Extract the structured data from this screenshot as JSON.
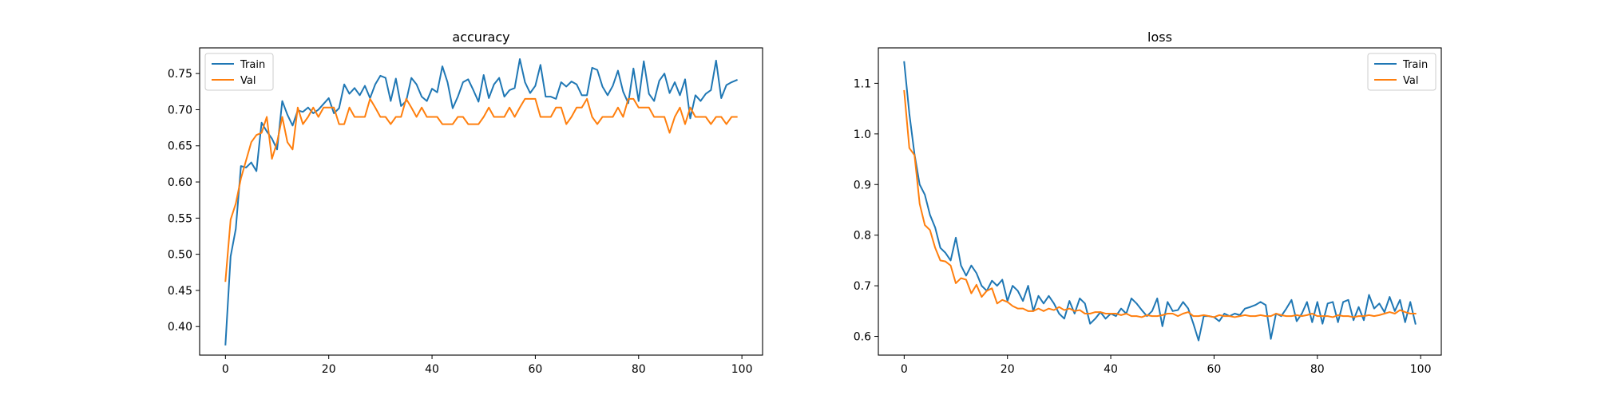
{
  "chart_data": [
    {
      "type": "line",
      "title": "accuracy",
      "xlabel": "",
      "ylabel": "",
      "xlim": [
        -5,
        104
      ],
      "ylim": [
        0.3605,
        0.7855
      ],
      "xticks": [
        0,
        20,
        40,
        60,
        80,
        100
      ],
      "xtick_labels": [
        "0",
        "20",
        "40",
        "60",
        "80",
        "100"
      ],
      "yticks": [
        0.4,
        0.45,
        0.5,
        0.55,
        0.6,
        0.65,
        0.7,
        0.75
      ],
      "ytick_labels": [
        "0.40",
        "0.45",
        "0.50",
        "0.55",
        "0.60",
        "0.65",
        "0.70",
        "0.75"
      ],
      "grid": false,
      "legend_position": "upper-left",
      "series": [
        {
          "name": "Train",
          "color": "#1f77b4",
          "x": [
            0,
            1,
            2,
            3,
            4,
            5,
            6,
            7,
            8,
            9,
            10,
            11,
            12,
            13,
            14,
            15,
            16,
            17,
            18,
            19,
            20,
            21,
            22,
            23,
            24,
            25,
            26,
            27,
            28,
            29,
            30,
            31,
            32,
            33,
            34,
            35,
            36,
            37,
            38,
            39,
            40,
            41,
            42,
            43,
            44,
            45,
            46,
            47,
            48,
            49,
            50,
            51,
            52,
            53,
            54,
            55,
            56,
            57,
            58,
            59,
            60,
            61,
            62,
            63,
            64,
            65,
            66,
            67,
            68,
            69,
            70,
            71,
            72,
            73,
            74,
            75,
            76,
            77,
            78,
            79,
            80,
            81,
            82,
            83,
            84,
            85,
            86,
            87,
            88,
            89,
            90,
            91,
            92,
            93,
            94,
            95,
            96,
            97,
            98,
            99
          ],
          "values": [
            0.375,
            0.497,
            0.535,
            0.622,
            0.62,
            0.627,
            0.615,
            0.682,
            0.67,
            0.66,
            0.645,
            0.712,
            0.693,
            0.678,
            0.699,
            0.697,
            0.703,
            0.695,
            0.7,
            0.708,
            0.716,
            0.695,
            0.702,
            0.735,
            0.722,
            0.73,
            0.72,
            0.733,
            0.716,
            0.735,
            0.747,
            0.744,
            0.712,
            0.743,
            0.705,
            0.712,
            0.744,
            0.735,
            0.718,
            0.712,
            0.729,
            0.724,
            0.76,
            0.738,
            0.702,
            0.718,
            0.738,
            0.742,
            0.727,
            0.711,
            0.748,
            0.716,
            0.735,
            0.744,
            0.718,
            0.727,
            0.73,
            0.77,
            0.738,
            0.723,
            0.733,
            0.762,
            0.718,
            0.718,
            0.715,
            0.738,
            0.732,
            0.739,
            0.735,
            0.72,
            0.72,
            0.758,
            0.755,
            0.732,
            0.72,
            0.733,
            0.754,
            0.725,
            0.709,
            0.757,
            0.712,
            0.767,
            0.722,
            0.712,
            0.74,
            0.75,
            0.723,
            0.738,
            0.72,
            0.742,
            0.688,
            0.72,
            0.712,
            0.722,
            0.727,
            0.768,
            0.716,
            0.734,
            0.738,
            0.741
          ]
        },
        {
          "name": "Val",
          "color": "#ff7f0e",
          "x": [
            0,
            1,
            2,
            3,
            4,
            5,
            6,
            7,
            8,
            9,
            10,
            11,
            12,
            13,
            14,
            15,
            16,
            17,
            18,
            19,
            20,
            21,
            22,
            23,
            24,
            25,
            26,
            27,
            28,
            29,
            30,
            31,
            32,
            33,
            34,
            35,
            36,
            37,
            38,
            39,
            40,
            41,
            42,
            43,
            44,
            45,
            46,
            47,
            48,
            49,
            50,
            51,
            52,
            53,
            54,
            55,
            56,
            57,
            58,
            59,
            60,
            61,
            62,
            63,
            64,
            65,
            66,
            67,
            68,
            69,
            70,
            71,
            72,
            73,
            74,
            75,
            76,
            77,
            78,
            79,
            80,
            81,
            82,
            83,
            84,
            85,
            86,
            87,
            88,
            89,
            90,
            91,
            92,
            93,
            94,
            95,
            96,
            97,
            98,
            99
          ],
          "values": [
            0.463,
            0.548,
            0.57,
            0.605,
            0.63,
            0.655,
            0.665,
            0.668,
            0.69,
            0.632,
            0.655,
            0.69,
            0.655,
            0.645,
            0.703,
            0.68,
            0.69,
            0.703,
            0.69,
            0.703,
            0.703,
            0.703,
            0.68,
            0.68,
            0.703,
            0.69,
            0.69,
            0.69,
            0.715,
            0.703,
            0.69,
            0.69,
            0.68,
            0.69,
            0.69,
            0.715,
            0.703,
            0.69,
            0.703,
            0.69,
            0.69,
            0.69,
            0.68,
            0.68,
            0.68,
            0.69,
            0.69,
            0.68,
            0.68,
            0.68,
            0.69,
            0.703,
            0.69,
            0.69,
            0.69,
            0.703,
            0.69,
            0.703,
            0.715,
            0.715,
            0.715,
            0.69,
            0.69,
            0.69,
            0.703,
            0.703,
            0.68,
            0.69,
            0.703,
            0.703,
            0.715,
            0.69,
            0.68,
            0.69,
            0.69,
            0.69,
            0.703,
            0.69,
            0.715,
            0.715,
            0.703,
            0.703,
            0.703,
            0.69,
            0.69,
            0.69,
            0.668,
            0.69,
            0.703,
            0.68,
            0.703,
            0.69,
            0.69,
            0.69,
            0.68,
            0.69,
            0.69,
            0.68,
            0.69,
            0.69
          ]
        }
      ]
    },
    {
      "type": "line",
      "title": "loss",
      "xlabel": "",
      "ylabel": "",
      "xlim": [
        -5,
        104
      ],
      "ylim": [
        0.563,
        1.17
      ],
      "xticks": [
        0,
        20,
        40,
        60,
        80,
        100
      ],
      "xtick_labels": [
        "0",
        "20",
        "40",
        "60",
        "80",
        "100"
      ],
      "yticks": [
        0.6,
        0.7,
        0.8,
        0.9,
        1.0,
        1.1
      ],
      "ytick_labels": [
        "0.6",
        "0.7",
        "0.8",
        "0.9",
        "1.0",
        "1.1"
      ],
      "grid": false,
      "legend_position": "upper-right",
      "series": [
        {
          "name": "Train",
          "color": "#1f77b4",
          "x": [
            0,
            1,
            2,
            3,
            4,
            5,
            6,
            7,
            8,
            9,
            10,
            11,
            12,
            13,
            14,
            15,
            16,
            17,
            18,
            19,
            20,
            21,
            22,
            23,
            24,
            25,
            26,
            27,
            28,
            29,
            30,
            31,
            32,
            33,
            34,
            35,
            36,
            37,
            38,
            39,
            40,
            41,
            42,
            43,
            44,
            45,
            46,
            47,
            48,
            49,
            50,
            51,
            52,
            53,
            54,
            55,
            56,
            57,
            58,
            59,
            60,
            61,
            62,
            63,
            64,
            65,
            66,
            67,
            68,
            69,
            70,
            71,
            72,
            73,
            74,
            75,
            76,
            77,
            78,
            79,
            80,
            81,
            82,
            83,
            84,
            85,
            86,
            87,
            88,
            89,
            90,
            91,
            92,
            93,
            94,
            95,
            96,
            97,
            98,
            99
          ],
          "values": [
            1.142,
            1.04,
            0.96,
            0.9,
            0.88,
            0.84,
            0.815,
            0.775,
            0.765,
            0.75,
            0.795,
            0.74,
            0.72,
            0.74,
            0.725,
            0.7,
            0.69,
            0.71,
            0.7,
            0.712,
            0.67,
            0.7,
            0.69,
            0.67,
            0.7,
            0.65,
            0.68,
            0.665,
            0.68,
            0.665,
            0.645,
            0.635,
            0.67,
            0.645,
            0.675,
            0.665,
            0.625,
            0.635,
            0.648,
            0.635,
            0.645,
            0.64,
            0.655,
            0.645,
            0.675,
            0.665,
            0.652,
            0.64,
            0.65,
            0.675,
            0.62,
            0.668,
            0.65,
            0.652,
            0.668,
            0.655,
            0.625,
            0.592,
            0.64,
            0.64,
            0.638,
            0.63,
            0.645,
            0.64,
            0.645,
            0.642,
            0.655,
            0.658,
            0.662,
            0.668,
            0.662,
            0.595,
            0.645,
            0.64,
            0.655,
            0.672,
            0.63,
            0.645,
            0.668,
            0.628,
            0.668,
            0.625,
            0.665,
            0.668,
            0.628,
            0.668,
            0.672,
            0.632,
            0.658,
            0.632,
            0.682,
            0.655,
            0.665,
            0.648,
            0.678,
            0.65,
            0.672,
            0.628,
            0.668,
            0.625
          ]
        },
        {
          "name": "Val",
          "color": "#ff7f0e",
          "x": [
            0,
            1,
            2,
            3,
            4,
            5,
            6,
            7,
            8,
            9,
            10,
            11,
            12,
            13,
            14,
            15,
            16,
            17,
            18,
            19,
            20,
            21,
            22,
            23,
            24,
            25,
            26,
            27,
            28,
            29,
            30,
            31,
            32,
            33,
            34,
            35,
            36,
            37,
            38,
            39,
            40,
            41,
            42,
            43,
            44,
            45,
            46,
            47,
            48,
            49,
            50,
            51,
            52,
            53,
            54,
            55,
            56,
            57,
            58,
            59,
            60,
            61,
            62,
            63,
            64,
            65,
            66,
            67,
            68,
            69,
            70,
            71,
            72,
            73,
            74,
            75,
            76,
            77,
            78,
            79,
            80,
            81,
            82,
            83,
            84,
            85,
            86,
            87,
            88,
            89,
            90,
            91,
            92,
            93,
            94,
            95,
            96,
            97,
            98,
            99
          ],
          "values": [
            1.085,
            0.972,
            0.958,
            0.862,
            0.82,
            0.81,
            0.775,
            0.75,
            0.748,
            0.74,
            0.705,
            0.715,
            0.712,
            0.685,
            0.702,
            0.678,
            0.69,
            0.695,
            0.665,
            0.672,
            0.668,
            0.66,
            0.655,
            0.655,
            0.65,
            0.65,
            0.655,
            0.65,
            0.655,
            0.652,
            0.658,
            0.652,
            0.655,
            0.65,
            0.652,
            0.645,
            0.645,
            0.648,
            0.648,
            0.645,
            0.645,
            0.645,
            0.642,
            0.645,
            0.64,
            0.64,
            0.638,
            0.642,
            0.64,
            0.64,
            0.642,
            0.645,
            0.645,
            0.64,
            0.645,
            0.648,
            0.64,
            0.64,
            0.642,
            0.64,
            0.638,
            0.642,
            0.64,
            0.64,
            0.638,
            0.64,
            0.642,
            0.64,
            0.64,
            0.642,
            0.64,
            0.64,
            0.645,
            0.642,
            0.64,
            0.64,
            0.642,
            0.64,
            0.642,
            0.645,
            0.64,
            0.64,
            0.64,
            0.638,
            0.642,
            0.64,
            0.64,
            0.638,
            0.64,
            0.64,
            0.642,
            0.64,
            0.642,
            0.645,
            0.648,
            0.645,
            0.652,
            0.648,
            0.645,
            0.645
          ]
        }
      ]
    }
  ]
}
